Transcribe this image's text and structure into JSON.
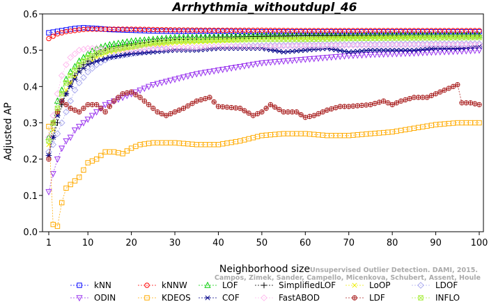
{
  "chart_data": {
    "type": "line",
    "title": "Arrhythmia_withoutdupl_46",
    "xlabel": "Neighborhood size",
    "ylabel": "Adjusted AP",
    "xlim": [
      1,
      100
    ],
    "ylim": [
      0.0,
      0.6
    ],
    "xticks": [
      1,
      10,
      20,
      30,
      40,
      50,
      60,
      70,
      80,
      90,
      100
    ],
    "yticks": [
      0.0,
      0.1,
      0.2,
      0.3,
      0.4,
      0.5,
      0.6
    ],
    "grid": false,
    "legend_position": "bottom",
    "watermark": [
      "Unsupervised Outlier Detection. DAMI, 2015.",
      "Campos, Zimek, Sander, Campello, Micenkova, Schubert, Assent, Houle"
    ],
    "series": [
      {
        "name": "kNN",
        "color": "#0000ff",
        "marker": "square",
        "points": [
          [
            1,
            0.548
          ],
          [
            3,
            0.552
          ],
          [
            5,
            0.556
          ],
          [
            7,
            0.56
          ],
          [
            9,
            0.562
          ],
          [
            12,
            0.56
          ],
          [
            15,
            0.557
          ],
          [
            20,
            0.555
          ],
          [
            25,
            0.553
          ],
          [
            30,
            0.552
          ],
          [
            40,
            0.552
          ],
          [
            50,
            0.551
          ],
          [
            60,
            0.551
          ],
          [
            70,
            0.551
          ],
          [
            80,
            0.551
          ],
          [
            90,
            0.551
          ],
          [
            100,
            0.551
          ]
        ]
      },
      {
        "name": "kNNW",
        "color": "#ff0000",
        "marker": "circle",
        "points": [
          [
            1,
            0.532
          ],
          [
            3,
            0.545
          ],
          [
            5,
            0.551
          ],
          [
            8,
            0.556
          ],
          [
            10,
            0.558
          ],
          [
            15,
            0.558
          ],
          [
            20,
            0.558
          ],
          [
            25,
            0.557
          ],
          [
            30,
            0.556
          ],
          [
            40,
            0.555
          ],
          [
            50,
            0.555
          ],
          [
            60,
            0.554
          ],
          [
            70,
            0.554
          ],
          [
            80,
            0.554
          ],
          [
            90,
            0.554
          ],
          [
            100,
            0.554
          ]
        ]
      },
      {
        "name": "LOF",
        "color": "#00cc00",
        "marker": "triangle-up",
        "points": [
          [
            1,
            0.26
          ],
          [
            2,
            0.3
          ],
          [
            3,
            0.36
          ],
          [
            4,
            0.39
          ],
          [
            5,
            0.42
          ],
          [
            6,
            0.44
          ],
          [
            7,
            0.455
          ],
          [
            8,
            0.47
          ],
          [
            10,
            0.49
          ],
          [
            12,
            0.505
          ],
          [
            15,
            0.515
          ],
          [
            20,
            0.525
          ],
          [
            25,
            0.53
          ],
          [
            30,
            0.535
          ],
          [
            40,
            0.537
          ],
          [
            50,
            0.54
          ],
          [
            60,
            0.54
          ],
          [
            70,
            0.54
          ],
          [
            80,
            0.541
          ],
          [
            90,
            0.541
          ],
          [
            100,
            0.541
          ]
        ]
      },
      {
        "name": "SimplifiedLOF",
        "color": "#000000",
        "marker": "plus",
        "points": [
          [
            1,
            0.21
          ],
          [
            2,
            0.26
          ],
          [
            3,
            0.3
          ],
          [
            4,
            0.35
          ],
          [
            5,
            0.38
          ],
          [
            6,
            0.41
          ],
          [
            7,
            0.43
          ],
          [
            8,
            0.45
          ],
          [
            10,
            0.47
          ],
          [
            12,
            0.49
          ],
          [
            15,
            0.505
          ],
          [
            20,
            0.515
          ],
          [
            25,
            0.525
          ],
          [
            30,
            0.53
          ],
          [
            40,
            0.535
          ],
          [
            50,
            0.538
          ],
          [
            60,
            0.54
          ],
          [
            70,
            0.54
          ],
          [
            80,
            0.54
          ],
          [
            90,
            0.54
          ],
          [
            100,
            0.54
          ]
        ]
      },
      {
        "name": "LoOP",
        "color": "#eeee00",
        "marker": "x",
        "points": [
          [
            1,
            0.24
          ],
          [
            2,
            0.28
          ],
          [
            3,
            0.33
          ],
          [
            4,
            0.36
          ],
          [
            5,
            0.39
          ],
          [
            6,
            0.41
          ],
          [
            8,
            0.44
          ],
          [
            10,
            0.46
          ],
          [
            12,
            0.48
          ],
          [
            15,
            0.495
          ],
          [
            20,
            0.505
          ],
          [
            25,
            0.515
          ],
          [
            30,
            0.52
          ],
          [
            40,
            0.525
          ],
          [
            50,
            0.53
          ],
          [
            60,
            0.532
          ],
          [
            70,
            0.534
          ],
          [
            80,
            0.535
          ],
          [
            90,
            0.535
          ],
          [
            100,
            0.536
          ]
        ]
      },
      {
        "name": "LDOF",
        "color": "#aaaaee",
        "marker": "diamond",
        "points": [
          [
            1,
            0.22
          ],
          [
            2,
            0.24
          ],
          [
            3,
            0.27
          ],
          [
            4,
            0.3
          ],
          [
            5,
            0.33
          ],
          [
            6,
            0.36
          ],
          [
            7,
            0.39
          ],
          [
            8,
            0.41
          ],
          [
            10,
            0.44
          ],
          [
            12,
            0.46
          ],
          [
            15,
            0.48
          ],
          [
            20,
            0.49
          ],
          [
            25,
            0.5
          ],
          [
            30,
            0.505
          ],
          [
            40,
            0.51
          ],
          [
            50,
            0.513
          ],
          [
            60,
            0.515
          ],
          [
            70,
            0.516
          ],
          [
            80,
            0.517
          ],
          [
            90,
            0.518
          ],
          [
            100,
            0.518
          ]
        ]
      },
      {
        "name": "ODIN",
        "color": "#9933ee",
        "marker": "triangle-down",
        "points": [
          [
            1,
            0.11
          ],
          [
            2,
            0.16
          ],
          [
            3,
            0.2
          ],
          [
            4,
            0.23
          ],
          [
            5,
            0.25
          ],
          [
            6,
            0.26
          ],
          [
            7,
            0.28
          ],
          [
            8,
            0.29
          ],
          [
            10,
            0.31
          ],
          [
            12,
            0.33
          ],
          [
            14,
            0.35
          ],
          [
            16,
            0.36
          ],
          [
            18,
            0.37
          ],
          [
            20,
            0.38
          ],
          [
            25,
            0.405
          ],
          [
            30,
            0.42
          ],
          [
            35,
            0.435
          ],
          [
            40,
            0.445
          ],
          [
            45,
            0.455
          ],
          [
            50,
            0.465
          ],
          [
            55,
            0.47
          ],
          [
            60,
            0.475
          ],
          [
            65,
            0.48
          ],
          [
            70,
            0.485
          ],
          [
            75,
            0.488
          ],
          [
            80,
            0.49
          ],
          [
            85,
            0.492
          ],
          [
            90,
            0.495
          ],
          [
            95,
            0.497
          ],
          [
            100,
            0.5
          ]
        ]
      },
      {
        "name": "KDEOS",
        "color": "#ffaa00",
        "marker": "square",
        "points": [
          [
            1,
            0.29
          ],
          [
            2,
            0.02
          ],
          [
            3,
            0.015
          ],
          [
            4,
            0.08
          ],
          [
            5,
            0.12
          ],
          [
            6,
            0.13
          ],
          [
            7,
            0.14
          ],
          [
            8,
            0.15
          ],
          [
            9,
            0.17
          ],
          [
            10,
            0.19
          ],
          [
            12,
            0.2
          ],
          [
            14,
            0.22
          ],
          [
            16,
            0.22
          ],
          [
            18,
            0.215
          ],
          [
            20,
            0.23
          ],
          [
            22,
            0.24
          ],
          [
            25,
            0.245
          ],
          [
            30,
            0.245
          ],
          [
            35,
            0.24
          ],
          [
            40,
            0.24
          ],
          [
            45,
            0.25
          ],
          [
            50,
            0.265
          ],
          [
            55,
            0.27
          ],
          [
            60,
            0.27
          ],
          [
            65,
            0.265
          ],
          [
            70,
            0.265
          ],
          [
            75,
            0.27
          ],
          [
            80,
            0.275
          ],
          [
            85,
            0.285
          ],
          [
            90,
            0.295
          ],
          [
            95,
            0.3
          ],
          [
            100,
            0.3
          ]
        ]
      },
      {
        "name": "COF",
        "color": "#000088",
        "marker": "asterisk",
        "points": [
          [
            1,
            0.21
          ],
          [
            2,
            0.26
          ],
          [
            3,
            0.32
          ],
          [
            4,
            0.36
          ],
          [
            5,
            0.38
          ],
          [
            6,
            0.4
          ],
          [
            7,
            0.42
          ],
          [
            8,
            0.44
          ],
          [
            10,
            0.46
          ],
          [
            12,
            0.47
          ],
          [
            15,
            0.48
          ],
          [
            20,
            0.49
          ],
          [
            25,
            0.495
          ],
          [
            30,
            0.5
          ],
          [
            35,
            0.5
          ],
          [
            40,
            0.505
          ],
          [
            45,
            0.505
          ],
          [
            50,
            0.505
          ],
          [
            55,
            0.495
          ],
          [
            60,
            0.5
          ],
          [
            65,
            0.505
          ],
          [
            70,
            0.495
          ],
          [
            75,
            0.5
          ],
          [
            80,
            0.5
          ],
          [
            85,
            0.5
          ],
          [
            90,
            0.505
          ],
          [
            95,
            0.505
          ],
          [
            100,
            0.51
          ]
        ]
      },
      {
        "name": "FastABOD",
        "color": "#ffbbee",
        "marker": "diamond",
        "points": [
          [
            1,
            0.26
          ],
          [
            2,
            0.32
          ],
          [
            3,
            0.38
          ],
          [
            4,
            0.43
          ],
          [
            5,
            0.46
          ],
          [
            6,
            0.48
          ],
          [
            7,
            0.49
          ],
          [
            8,
            0.5
          ],
          [
            10,
            0.505
          ],
          [
            12,
            0.505
          ],
          [
            15,
            0.5
          ],
          [
            20,
            0.5
          ],
          [
            25,
            0.505
          ],
          [
            30,
            0.505
          ],
          [
            40,
            0.51
          ],
          [
            50,
            0.51
          ],
          [
            60,
            0.512
          ],
          [
            70,
            0.513
          ],
          [
            80,
            0.514
          ],
          [
            90,
            0.515
          ],
          [
            100,
            0.515
          ]
        ]
      },
      {
        "name": "LDF",
        "color": "#aa2222",
        "marker": "circle-plus",
        "points": [
          [
            1,
            0.2
          ],
          [
            2,
            0.3
          ],
          [
            3,
            0.33
          ],
          [
            4,
            0.36
          ],
          [
            5,
            0.35
          ],
          [
            6,
            0.34
          ],
          [
            8,
            0.33
          ],
          [
            10,
            0.35
          ],
          [
            12,
            0.35
          ],
          [
            14,
            0.33
          ],
          [
            16,
            0.36
          ],
          [
            18,
            0.38
          ],
          [
            20,
            0.385
          ],
          [
            22,
            0.37
          ],
          [
            24,
            0.35
          ],
          [
            26,
            0.33
          ],
          [
            28,
            0.32
          ],
          [
            30,
            0.33
          ],
          [
            32,
            0.34
          ],
          [
            35,
            0.36
          ],
          [
            38,
            0.37
          ],
          [
            40,
            0.345
          ],
          [
            45,
            0.34
          ],
          [
            48,
            0.32
          ],
          [
            50,
            0.33
          ],
          [
            52,
            0.35
          ],
          [
            55,
            0.33
          ],
          [
            58,
            0.33
          ],
          [
            60,
            0.315
          ],
          [
            62,
            0.32
          ],
          [
            65,
            0.335
          ],
          [
            68,
            0.345
          ],
          [
            70,
            0.345
          ],
          [
            75,
            0.35
          ],
          [
            78,
            0.36
          ],
          [
            80,
            0.35
          ],
          [
            82,
            0.36
          ],
          [
            85,
            0.37
          ],
          [
            88,
            0.37
          ],
          [
            90,
            0.38
          ],
          [
            92,
            0.39
          ],
          [
            94,
            0.4
          ],
          [
            95,
            0.405
          ],
          [
            96,
            0.355
          ],
          [
            98,
            0.355
          ],
          [
            100,
            0.35
          ]
        ]
      },
      {
        "name": "INFLO",
        "color": "#aaee44",
        "marker": "square-x",
        "points": [
          [
            1,
            0.25
          ],
          [
            2,
            0.3
          ],
          [
            3,
            0.34
          ],
          [
            4,
            0.38
          ],
          [
            5,
            0.41
          ],
          [
            6,
            0.43
          ],
          [
            8,
            0.46
          ],
          [
            10,
            0.48
          ],
          [
            12,
            0.49
          ],
          [
            15,
            0.5
          ],
          [
            20,
            0.51
          ],
          [
            25,
            0.52
          ],
          [
            30,
            0.525
          ],
          [
            40,
            0.528
          ],
          [
            50,
            0.53
          ],
          [
            60,
            0.53
          ],
          [
            70,
            0.532
          ],
          [
            80,
            0.533
          ],
          [
            90,
            0.534
          ],
          [
            100,
            0.535
          ]
        ]
      }
    ]
  }
}
